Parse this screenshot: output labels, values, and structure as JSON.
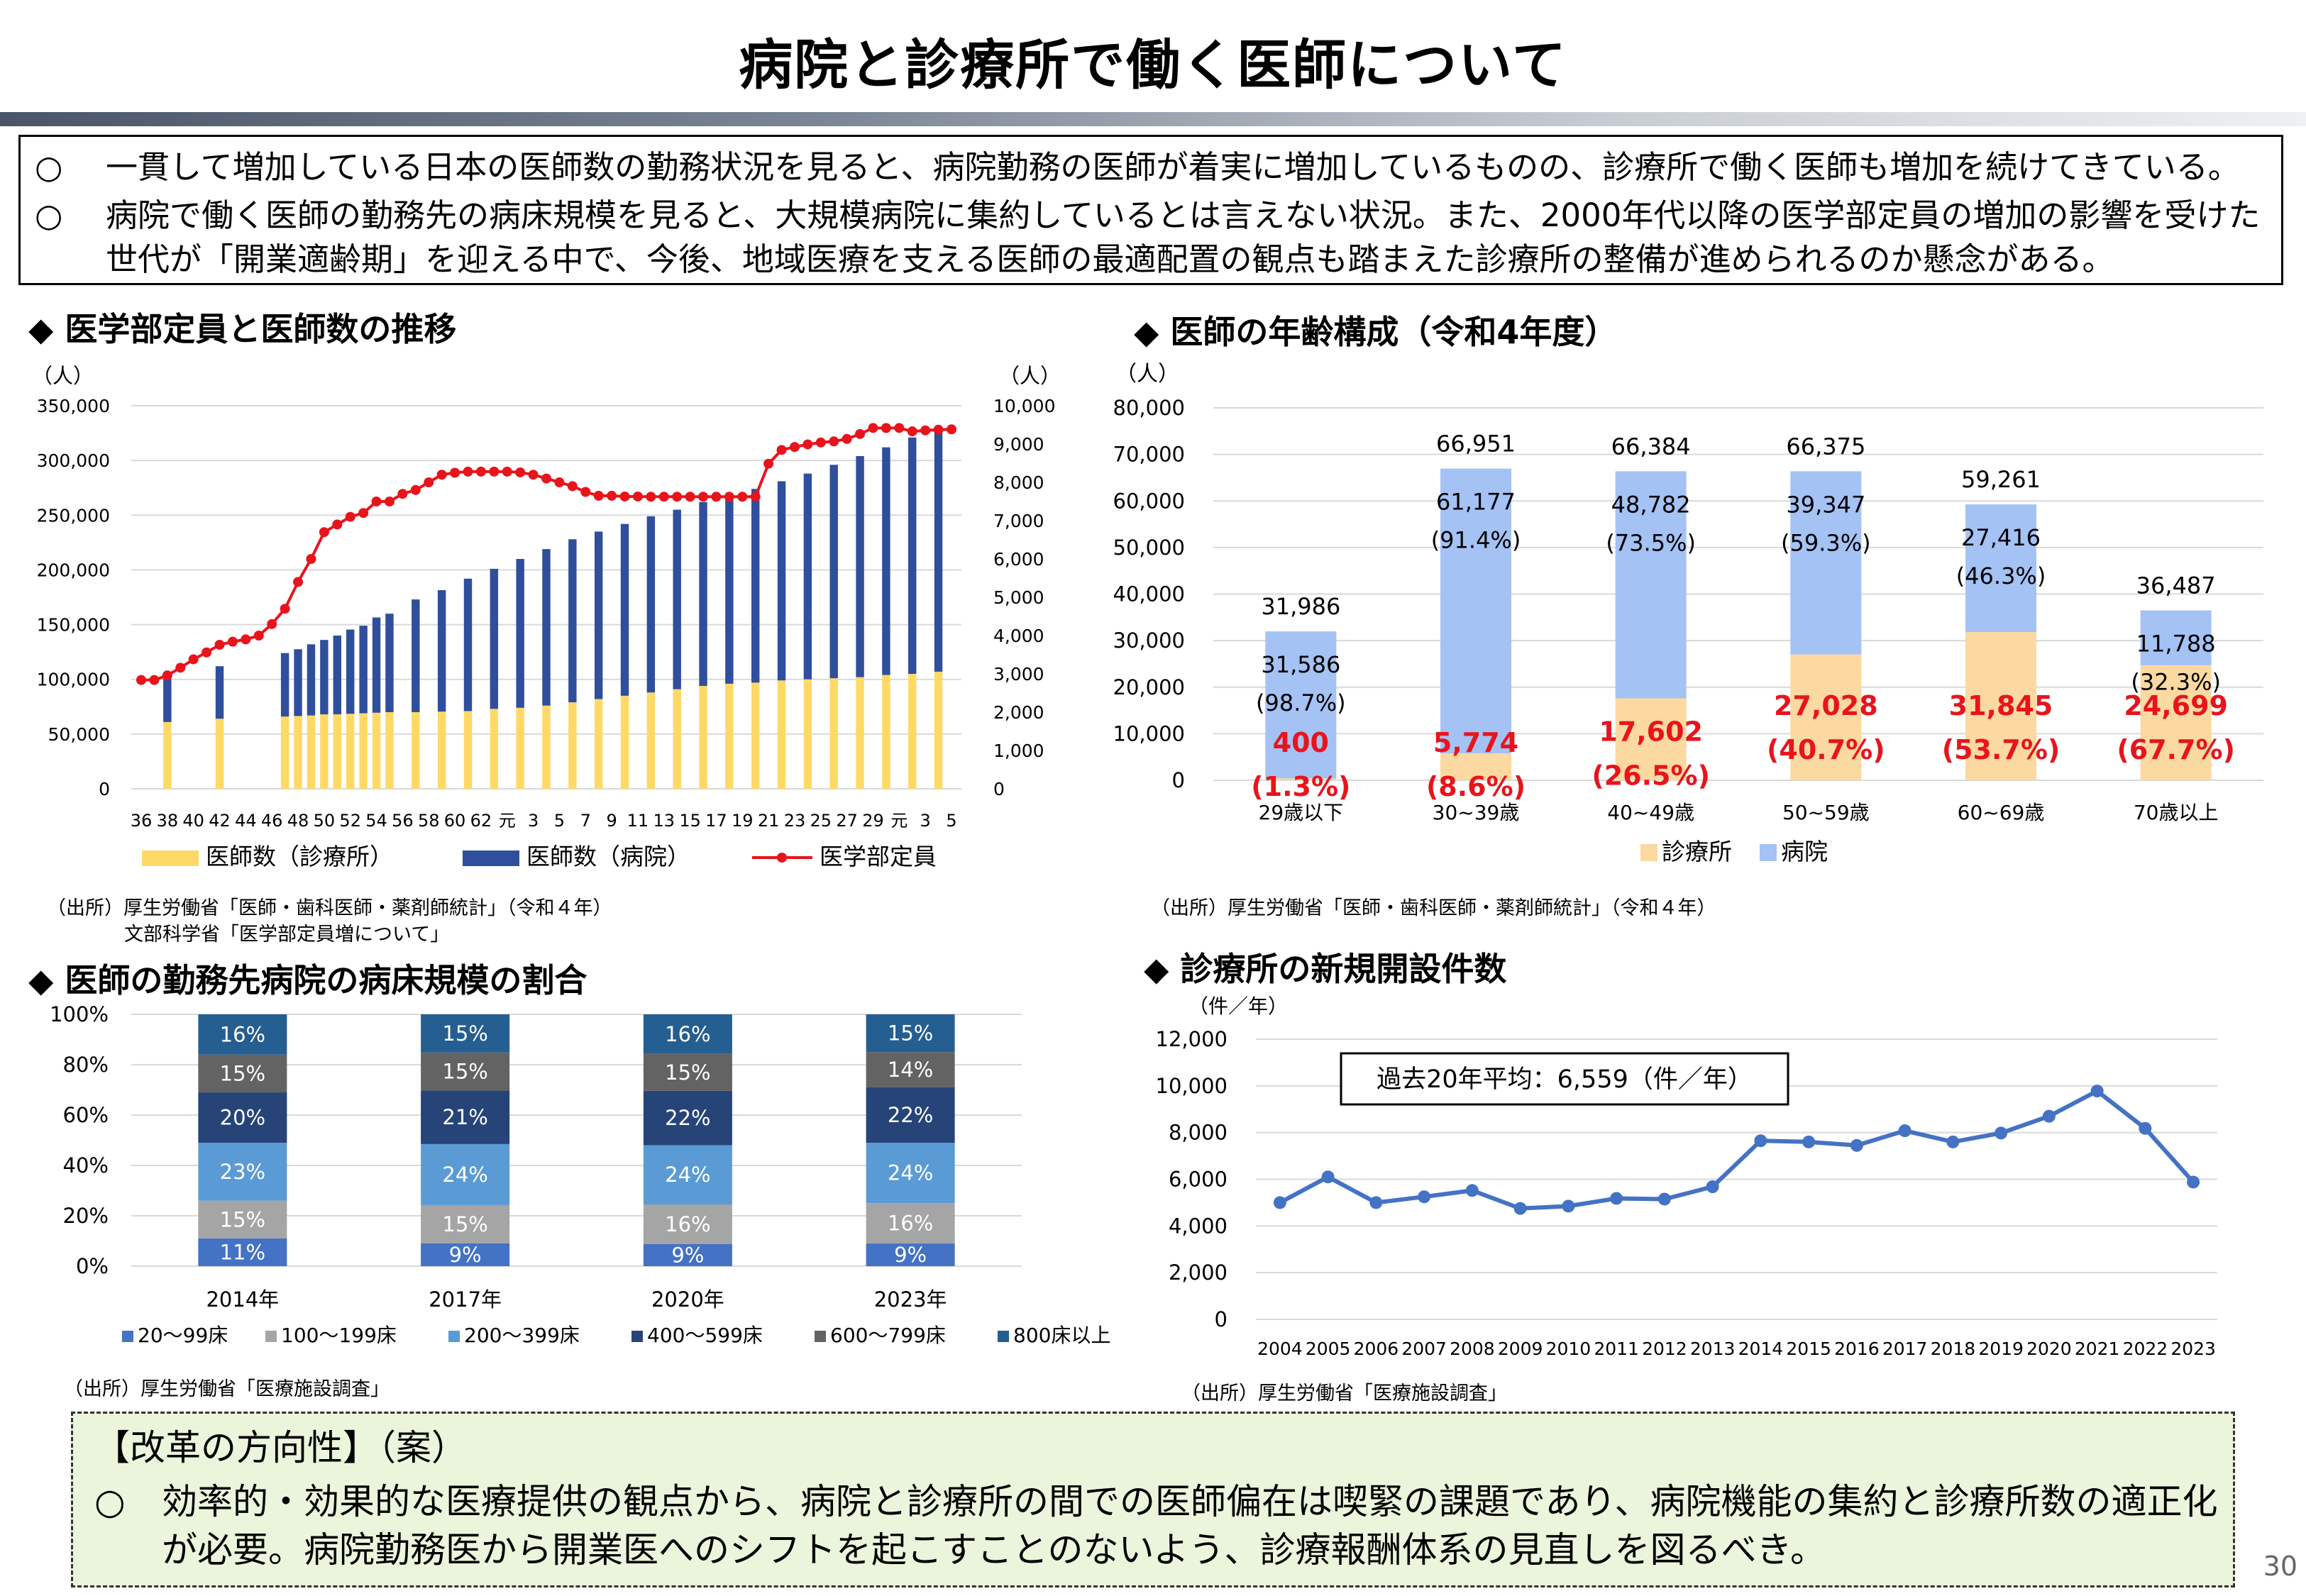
{
  "title": "病院と診療所で働く医師について",
  "summary": [
    {
      "mark": "○",
      "text": "一貫して増加している日本の医師数の勤務状況を見ると、病院勤務の医師が着実に増加しているものの、診療所で働く医師も増加を続けてきている。"
    },
    {
      "mark": "○",
      "text": "病院で働く医師の勤務先の病床規模を見ると、大規模病院に集約しているとは言えない状況。また、2000年代以降の医学部定員の増加の影響を受けた世代が「開業適齢期」を迎える中で、今後、地域医療を支える医師の最適配置の観点も踏まえた診療所の整備が進められるのか懸念がある。"
    }
  ],
  "sections": {
    "s1": "◆ 医学部定員と医師数の推移",
    "s2": "◆ 医師の年齢構成（令和4年度）",
    "s3": "◆ 医師の勤務先病院の病床規模の割合",
    "s4": "◆ 診療所の新規開設件数"
  },
  "sources": {
    "s1a": "（出所）厚生労働省「医師・歯科医師・薬剤師統計」（令和４年）",
    "s1b": "文部科学省「医学部定員増について」",
    "s2": "（出所）厚生労働省「医師・歯科医師・薬剤師統計」（令和４年）",
    "s3": "（出所）厚生労働省「医療施設調査」",
    "s4": "（出所）厚生労働省「医療施設調査」"
  },
  "reform": {
    "title": "【改革の方向性】（案）",
    "mark": "○",
    "text": "効率的・効果的な医療提供の観点から、病院と診療所の間での医師偏在は喫緊の課題であり、病院機能の集約と診療所数の適正化が必要。病院勤務医から開業医へのシフトを起こすことのないよう、診療報酬体系の見直しを図るべき。"
  },
  "page_number": "30",
  "colors": {
    "clinic_yellow": "#ffd966",
    "hospital_blue": "#2f4e9c",
    "quota_red": "#e8141c",
    "age_clinic": "#fbd9a0",
    "age_hospital": "#a4c2f4",
    "line_blue": "#4472c4",
    "highlight_red": "#e8141c",
    "reform_bg": "#ebf5dc"
  },
  "chart_data": [
    {
      "type": "bar",
      "subtype": "stacked-bar-with-line",
      "unit_left": "（人）",
      "unit_right": "（人）",
      "left_ticks": [
        "0",
        "50,000",
        "100,000",
        "150,000",
        "200,000",
        "250,000",
        "300,000",
        "350,000"
      ],
      "right_ticks": [
        "0",
        "1,000",
        "2,000",
        "3,000",
        "4,000",
        "5,000",
        "6,000",
        "7,000",
        "8,000",
        "9,000",
        "10,000"
      ],
      "ylim_left": [
        0,
        350000
      ],
      "ylim_right": [
        0,
        10000
      ],
      "x_tick_labels": [
        "36",
        "38",
        "40",
        "42",
        "44",
        "46",
        "48",
        "50",
        "52",
        "54",
        "56",
        "58",
        "60",
        "62",
        "元",
        "3",
        "5",
        "7",
        "9",
        "11",
        "13",
        "15",
        "17",
        "19",
        "21",
        "23",
        "25",
        "27",
        "29",
        "元",
        "3",
        "5"
      ],
      "years": [
        1961,
        1962,
        1963,
        1964,
        1965,
        1966,
        1967,
        1968,
        1969,
        1970,
        1971,
        1972,
        1973,
        1974,
        1975,
        1976,
        1977,
        1978,
        1979,
        1980,
        1981,
        1982,
        1983,
        1984,
        1985,
        1986,
        1987,
        1988,
        1989,
        1990,
        1991,
        1992,
        1993,
        1994,
        1995,
        1996,
        1997,
        1998,
        1999,
        2000,
        2001,
        2002,
        2003,
        2004,
        2005,
        2006,
        2007,
        2008,
        2009,
        2010,
        2011,
        2012,
        2013,
        2014,
        2015,
        2016,
        2017,
        2018,
        2019,
        2020,
        2021,
        2022,
        2023
      ],
      "quota": [
        2840,
        2840,
        2960,
        3160,
        3380,
        3560,
        3760,
        3840,
        3900,
        4000,
        4300,
        4700,
        5400,
        6000,
        6700,
        6900,
        7100,
        7200,
        7500,
        7500,
        7700,
        7800,
        8000,
        8200,
        8250,
        8280,
        8280,
        8280,
        8280,
        8260,
        8200,
        8100,
        8000,
        7900,
        7750,
        7650,
        7650,
        7630,
        7630,
        7625,
        7625,
        7625,
        7625,
        7625,
        7625,
        7625,
        7625,
        7625,
        8486,
        8846,
        8923,
        8991,
        9041,
        9069,
        9134,
        9262,
        9420,
        9419,
        9420,
        9330,
        9357,
        9374,
        9384
      ],
      "doctor_bars": [
        {
          "year": 1963,
          "clinic": 61000,
          "hospital": 40000
        },
        {
          "year": 1967,
          "clinic": 64000,
          "hospital": 48000
        },
        {
          "year": 1972,
          "clinic": 66000,
          "hospital": 58000
        },
        {
          "year": 1973,
          "clinic": 66500,
          "hospital": 61000
        },
        {
          "year": 1974,
          "clinic": 67000,
          "hospital": 65000
        },
        {
          "year": 1975,
          "clinic": 68000,
          "hospital": 68000
        },
        {
          "year": 1976,
          "clinic": 68000,
          "hospital": 72000
        },
        {
          "year": 1977,
          "clinic": 68500,
          "hospital": 77000
        },
        {
          "year": 1978,
          "clinic": 69000,
          "hospital": 80000
        },
        {
          "year": 1979,
          "clinic": 69500,
          "hospital": 87000
        },
        {
          "year": 1980,
          "clinic": 70000,
          "hospital": 90000
        },
        {
          "year": 1982,
          "clinic": 70000,
          "hospital": 103000
        },
        {
          "year": 1984,
          "clinic": 70500,
          "hospital": 111000
        },
        {
          "year": 1986,
          "clinic": 71000,
          "hospital": 121000
        },
        {
          "year": 1988,
          "clinic": 73000,
          "hospital": 128000
        },
        {
          "year": 1990,
          "clinic": 74000,
          "hospital": 136000
        },
        {
          "year": 1992,
          "clinic": 76000,
          "hospital": 143000
        },
        {
          "year": 1994,
          "clinic": 79000,
          "hospital": 149000
        },
        {
          "year": 1996,
          "clinic": 82000,
          "hospital": 153000
        },
        {
          "year": 1998,
          "clinic": 85000,
          "hospital": 157000
        },
        {
          "year": 2000,
          "clinic": 88000,
          "hospital": 161000
        },
        {
          "year": 2002,
          "clinic": 91000,
          "hospital": 164000
        },
        {
          "year": 2004,
          "clinic": 94000,
          "hospital": 168000
        },
        {
          "year": 2006,
          "clinic": 96000,
          "hospital": 173000
        },
        {
          "year": 2008,
          "clinic": 97000,
          "hospital": 177000
        },
        {
          "year": 2010,
          "clinic": 99000,
          "hospital": 182000
        },
        {
          "year": 2012,
          "clinic": 100000,
          "hospital": 188000
        },
        {
          "year": 2014,
          "clinic": 101000,
          "hospital": 195000
        },
        {
          "year": 2016,
          "clinic": 102000,
          "hospital": 202000
        },
        {
          "year": 2018,
          "clinic": 104000,
          "hospital": 208000
        },
        {
          "year": 2020,
          "clinic": 105000,
          "hospital": 216000
        },
        {
          "year": 2022,
          "clinic": 107000,
          "hospital": 220000
        }
      ],
      "legend": [
        "医師数（診療所）",
        "医師数（病院）",
        "医学部定員"
      ],
      "grid": true
    },
    {
      "type": "bar",
      "subtype": "stacked",
      "unit": "（人）",
      "ylim": [
        0,
        80000
      ],
      "y_ticks": [
        "0",
        "10,000",
        "20,000",
        "30,000",
        "40,000",
        "50,000",
        "60,000",
        "70,000",
        "80,000"
      ],
      "categories": [
        "29歳以下",
        "30~39歳",
        "40~49歳",
        "50~59歳",
        "60~69歳",
        "70歳以上"
      ],
      "totals": [
        31986,
        66951,
        66384,
        66375,
        59261,
        36487
      ],
      "total_labels": [
        "31,986",
        "66,951",
        "66,384",
        "66,375",
        "59,261",
        "36,487"
      ],
      "series": [
        {
          "name": "診療所",
          "values": [
            400,
            5774,
            17602,
            27028,
            31845,
            24699
          ],
          "labels": [
            "400",
            "5,774",
            "17,602",
            "27,028",
            "31,845",
            "24,699"
          ],
          "pct": [
            "(1.3%)",
            "(8.6%)",
            "(26.5%)",
            "(40.7%)",
            "(53.7%)",
            "(67.7%)"
          ]
        },
        {
          "name": "病院",
          "values": [
            31586,
            61177,
            48782,
            39347,
            27416,
            11788
          ],
          "labels": [
            "31,586",
            "61,177",
            "48,782",
            "39,347",
            "27,416",
            "11,788"
          ],
          "pct": [
            "(98.7%)",
            "(91.4%)",
            "(73.5%)",
            "(59.3%)",
            "(46.3%)",
            "(32.3%)"
          ]
        }
      ],
      "grid": true
    },
    {
      "type": "bar",
      "subtype": "stacked-100",
      "categories": [
        "2014年",
        "2017年",
        "2020年",
        "2023年"
      ],
      "y_ticks": [
        "0%",
        "20%",
        "40%",
        "60%",
        "80%",
        "100%"
      ],
      "series": [
        {
          "name": "20～99床",
          "color": "#4472c4",
          "values": [
            11,
            9,
            9,
            9
          ]
        },
        {
          "name": "100～199床",
          "color": "#a5a5a5",
          "values": [
            15,
            15,
            16,
            16
          ]
        },
        {
          "name": "200～399床",
          "color": "#5b9bd5",
          "values": [
            23,
            24,
            24,
            24
          ]
        },
        {
          "name": "400～599床",
          "color": "#264478",
          "values": [
            20,
            21,
            22,
            22
          ]
        },
        {
          "name": "600～799床",
          "color": "#636363",
          "values": [
            15,
            15,
            15,
            14
          ]
        },
        {
          "name": "800床以上",
          "color": "#255e91",
          "values": [
            16,
            15,
            16,
            15
          ]
        }
      ]
    },
    {
      "type": "line",
      "unit": "（件／年）",
      "ylim": [
        0,
        12000
      ],
      "y_ticks": [
        "0",
        "2,000",
        "4,000",
        "6,000",
        "8,000",
        "10,000",
        "12,000"
      ],
      "x": [
        "2004",
        "2005",
        "2006",
        "2007",
        "2008",
        "2009",
        "2010",
        "2011",
        "2012",
        "2013",
        "2014",
        "2015",
        "2016",
        "2017",
        "2018",
        "2019",
        "2020",
        "2021",
        "2022",
        "2023"
      ],
      "values": [
        5000,
        6100,
        5000,
        5250,
        5520,
        4750,
        4850,
        5180,
        5150,
        5680,
        7650,
        7600,
        7450,
        8080,
        7600,
        7980,
        8700,
        9780,
        8180,
        5880
      ],
      "annotation": "過去20年平均：6,559（件／年）",
      "grid": true
    }
  ]
}
